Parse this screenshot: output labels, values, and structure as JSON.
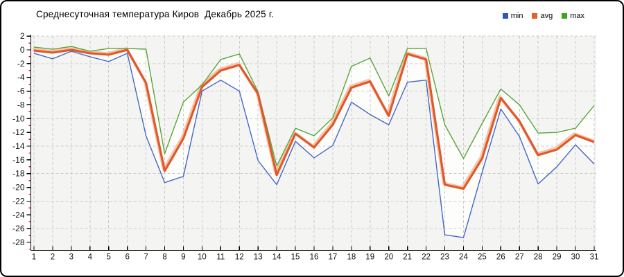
{
  "window": {
    "background": "#ffffff",
    "border_color": "#000000"
  },
  "header": {
    "title": "Среднесуточная температура Киров  Декабрь 2025 г."
  },
  "legend": {
    "position": "top-right",
    "items": [
      {
        "label": "min",
        "color": "#2d55c4"
      },
      {
        "label": "avg",
        "color": "#e2612b"
      },
      {
        "label": "max",
        "color": "#3fa31e"
      }
    ]
  },
  "chart_data": {
    "type": "line",
    "title": "Среднесуточная температура Киров  Декабрь 2025 г.",
    "xlabel": "",
    "ylabel": "",
    "x": [
      1,
      2,
      3,
      4,
      5,
      6,
      7,
      8,
      9,
      10,
      11,
      12,
      13,
      14,
      15,
      16,
      17,
      18,
      19,
      20,
      21,
      22,
      23,
      24,
      25,
      26,
      27,
      28,
      29,
      30,
      31
    ],
    "x_tick_labels": [
      "1",
      "2",
      "3",
      "4",
      "5",
      "6",
      "7",
      "8",
      "9",
      "10",
      "11",
      "12",
      "13",
      "14",
      "15",
      "16",
      "17",
      "18",
      "19",
      "20",
      "21",
      "22",
      "23",
      "24",
      "25",
      "26",
      "27",
      "28",
      "29",
      "30",
      "31"
    ],
    "y_tick_labels": [
      "2",
      "0",
      "-2",
      "-4",
      "-6",
      "-8",
      "-10",
      "-12",
      "-14",
      "-16",
      "-18",
      "-20",
      "-22",
      "-24",
      "-26",
      "-28"
    ],
    "y_ticks": [
      2,
      0,
      -2,
      -4,
      -6,
      -8,
      -10,
      -12,
      -14,
      -16,
      -18,
      -20,
      -22,
      -24,
      -26,
      -28
    ],
    "y_minor_ticks": [
      1,
      -1,
      -3,
      -5,
      -7,
      -9,
      -11,
      -13,
      -15,
      -17,
      -19,
      -21,
      -23,
      -25,
      -27,
      -29
    ],
    "grid_h_values": [
      2,
      -2,
      -6,
      -10,
      -14,
      -18,
      -22,
      -26
    ],
    "grid_v_every_day": true,
    "ylim": [
      -29.3,
      2
    ],
    "legend_position": "top-right",
    "series": [
      {
        "name": "min",
        "color": "#4467c6",
        "values": [
          -0.5,
          -1.3,
          -0.2,
          -1.0,
          -1.7,
          -0.5,
          -12.5,
          -19.3,
          -18.4,
          -6.0,
          -4.4,
          -6.0,
          -16.1,
          -19.6,
          -13.3,
          -15.7,
          -13.9,
          -7.6,
          -9.4,
          -10.9,
          -4.7,
          -4.4,
          -26.9,
          -27.3,
          -17.8,
          -8.6,
          -12.6,
          -19.5,
          -17.0,
          -13.8,
          -16.6
        ]
      },
      {
        "name": "avg",
        "color": "#e0582b",
        "halo_color": "#f4c6aa",
        "values": [
          -0.1,
          -0.4,
          0.0,
          -0.5,
          -0.7,
          0.0,
          -4.8,
          -17.6,
          -12.9,
          -5.4,
          -3.0,
          -2.2,
          -6.4,
          -18.2,
          -12.2,
          -14.2,
          -10.9,
          -5.5,
          -4.6,
          -9.6,
          -0.6,
          -1.4,
          -19.6,
          -20.2,
          -15.8,
          -7.0,
          -10.4,
          -15.3,
          -14.5,
          -12.4,
          -13.4
        ]
      },
      {
        "name": "max",
        "color": "#57a63a",
        "values": [
          0.4,
          0.1,
          0.5,
          -0.2,
          0.2,
          0.2,
          0.1,
          -15.1,
          -7.6,
          -5.1,
          -1.4,
          -0.6,
          -6.1,
          -16.9,
          -11.4,
          -12.5,
          -9.9,
          -2.4,
          -1.2,
          -6.7,
          0.2,
          0.2,
          -10.9,
          -15.8,
          -10.7,
          -5.7,
          -8.0,
          -12.1,
          -12.0,
          -11.4,
          -8.1
        ]
      }
    ],
    "style": {
      "plot_bg": "#f4f4f2",
      "band_fill": "#ffffff",
      "grid_color": "#cbcbcb",
      "axis_color": "#000000",
      "minor_tick_color": "#cc2020",
      "label_color": "#111111"
    }
  }
}
